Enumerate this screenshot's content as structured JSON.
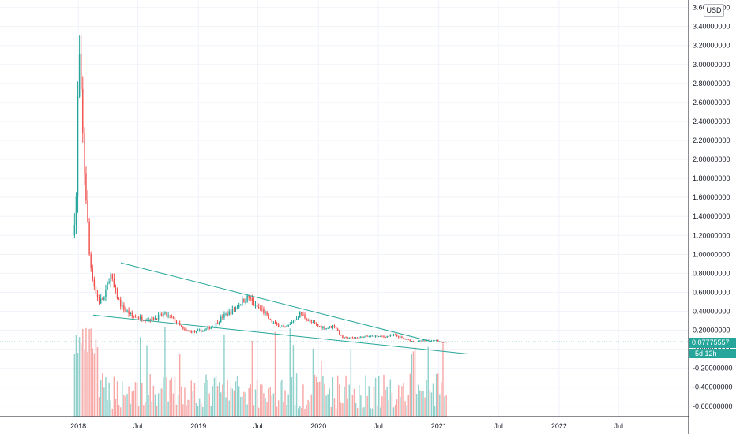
{
  "chart_data": {
    "type": "candlestick",
    "currency": "USD",
    "y_ticks": [
      3.6,
      3.4,
      3.2,
      3.0,
      2.8,
      2.6,
      2.4,
      2.2,
      2.0,
      1.8,
      1.6,
      1.4,
      1.2,
      1.0,
      0.8,
      0.6,
      0.4,
      0.2,
      0.0,
      -0.2,
      -0.4,
      -0.6
    ],
    "y_tick_labels": [
      "3.60000000",
      "3.40000000",
      "3.20000000",
      "3.00000000",
      "2.80000000",
      "2.60000000",
      "2.40000000",
      "2.20000000",
      "2.00000000",
      "1.80000000",
      "1.60000000",
      "1.40000000",
      "1.20000000",
      "1.00000000",
      "0.80000000",
      "0.60000000",
      "0.40000000",
      "0.20000000",
      "0.00000000",
      "-0.20000000",
      "-0.40000000",
      "-0.60000000"
    ],
    "ylim": [
      -0.71,
      3.68
    ],
    "x_ticks": [
      "2018",
      "Jul",
      "2019",
      "Jul",
      "2020",
      "Jul",
      "2021",
      "Jul",
      "2022",
      "Jul"
    ],
    "x_tick_dates": [
      "2018-01-01",
      "2018-07-01",
      "2019-01-01",
      "2019-07-01",
      "2020-01-01",
      "2020-07-01",
      "2021-01-01",
      "2021-07-01",
      "2022-01-01",
      "2022-07-01"
    ],
    "xlim": [
      "2017-05-08",
      "2023-01-30"
    ],
    "current_price": "0.07775557",
    "countdown": "5d 12h",
    "grid": true,
    "colors": {
      "up": "#26a69a",
      "down": "#ef5350",
      "trendline": "#26a69a",
      "price_line": "#26a69a",
      "grid": "#f0f3fa"
    },
    "trendlines": [
      {
        "start": [
          "2018-05-10",
          0.91
        ],
        "end": [
          "2020-12-10",
          0.08
        ]
      },
      {
        "start": [
          "2018-02-15",
          0.36
        ],
        "end": [
          "2021-04-01",
          -0.05
        ]
      }
    ],
    "anchors": [
      [
        "2017-12-18",
        1.2
      ],
      [
        "2017-12-28",
        1.6
      ],
      [
        "2018-01-05",
        3.2
      ],
      [
        "2018-01-12",
        2.6
      ],
      [
        "2018-01-20",
        2.0
      ],
      [
        "2018-01-28",
        1.55
      ],
      [
        "2018-02-06",
        1.0
      ],
      [
        "2018-02-14",
        0.8
      ],
      [
        "2018-02-25",
        0.6
      ],
      [
        "2018-03-08",
        0.5
      ],
      [
        "2018-03-25",
        0.55
      ],
      [
        "2018-04-10",
        0.8
      ],
      [
        "2018-04-25",
        0.6
      ],
      [
        "2018-05-15",
        0.45
      ],
      [
        "2018-06-15",
        0.35
      ],
      [
        "2018-07-20",
        0.32
      ],
      [
        "2018-08-20",
        0.32
      ],
      [
        "2018-09-20",
        0.37
      ],
      [
        "2018-10-20",
        0.32
      ],
      [
        "2018-11-20",
        0.2
      ],
      [
        "2018-12-20",
        0.18
      ],
      [
        "2019-01-20",
        0.2
      ],
      [
        "2019-02-20",
        0.25
      ],
      [
        "2019-03-20",
        0.35
      ],
      [
        "2019-04-15",
        0.4
      ],
      [
        "2019-05-15",
        0.5
      ],
      [
        "2019-06-05",
        0.55
      ],
      [
        "2019-06-25",
        0.45
      ],
      [
        "2019-07-15",
        0.42
      ],
      [
        "2019-08-10",
        0.3
      ],
      [
        "2019-09-01",
        0.25
      ],
      [
        "2019-09-25",
        0.22
      ],
      [
        "2019-10-20",
        0.3
      ],
      [
        "2019-11-10",
        0.38
      ],
      [
        "2019-12-05",
        0.3
      ],
      [
        "2019-12-30",
        0.25
      ],
      [
        "2020-01-25",
        0.22
      ],
      [
        "2020-02-20",
        0.25
      ],
      [
        "2020-03-15",
        0.12
      ],
      [
        "2020-04-15",
        0.12
      ],
      [
        "2020-05-20",
        0.13
      ],
      [
        "2020-06-20",
        0.14
      ],
      [
        "2020-07-20",
        0.13
      ],
      [
        "2020-08-20",
        0.15
      ],
      [
        "2020-09-20",
        0.11
      ],
      [
        "2020-10-20",
        0.08
      ],
      [
        "2020-11-20",
        0.09
      ],
      [
        "2020-12-20",
        0.1
      ],
      [
        "2021-01-15",
        0.07
      ],
      [
        "2021-01-25",
        0.08
      ]
    ]
  }
}
